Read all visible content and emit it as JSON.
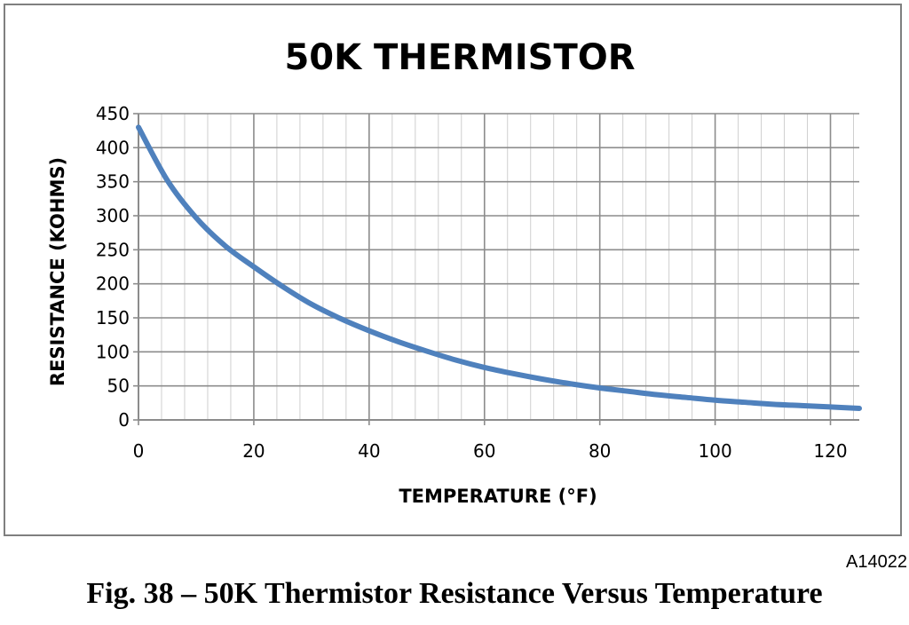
{
  "chart_data": {
    "type": "line",
    "title": "50K THERMISTOR",
    "xlabel": "TEMPERATURE (°F)",
    "ylabel": "RESISTANCE (KOHMS)",
    "xlim": [
      0,
      125
    ],
    "ylim": [
      0,
      450
    ],
    "xticks": [
      0,
      20,
      40,
      60,
      80,
      100,
      120
    ],
    "yticks": [
      0,
      50,
      100,
      150,
      200,
      250,
      300,
      350,
      400,
      450
    ],
    "grid": true,
    "series": [
      {
        "color": "#4f81bd",
        "x": [
          0,
          5,
          10,
          15,
          20,
          25,
          30,
          35,
          40,
          45,
          50,
          55,
          60,
          65,
          70,
          75,
          80,
          85,
          90,
          95,
          100,
          105,
          110,
          115,
          120,
          125
        ],
        "y": [
          430,
          352,
          297,
          256,
          225,
          196,
          170,
          149,
          131,
          115,
          101,
          88,
          77,
          68,
          60,
          53,
          47,
          42,
          37,
          33,
          29,
          26,
          23,
          21,
          19,
          17
        ]
      }
    ]
  },
  "figure_id": "A14022",
  "caption": "Fig. 38 – 50K Thermistor Resistance Versus Temperature"
}
